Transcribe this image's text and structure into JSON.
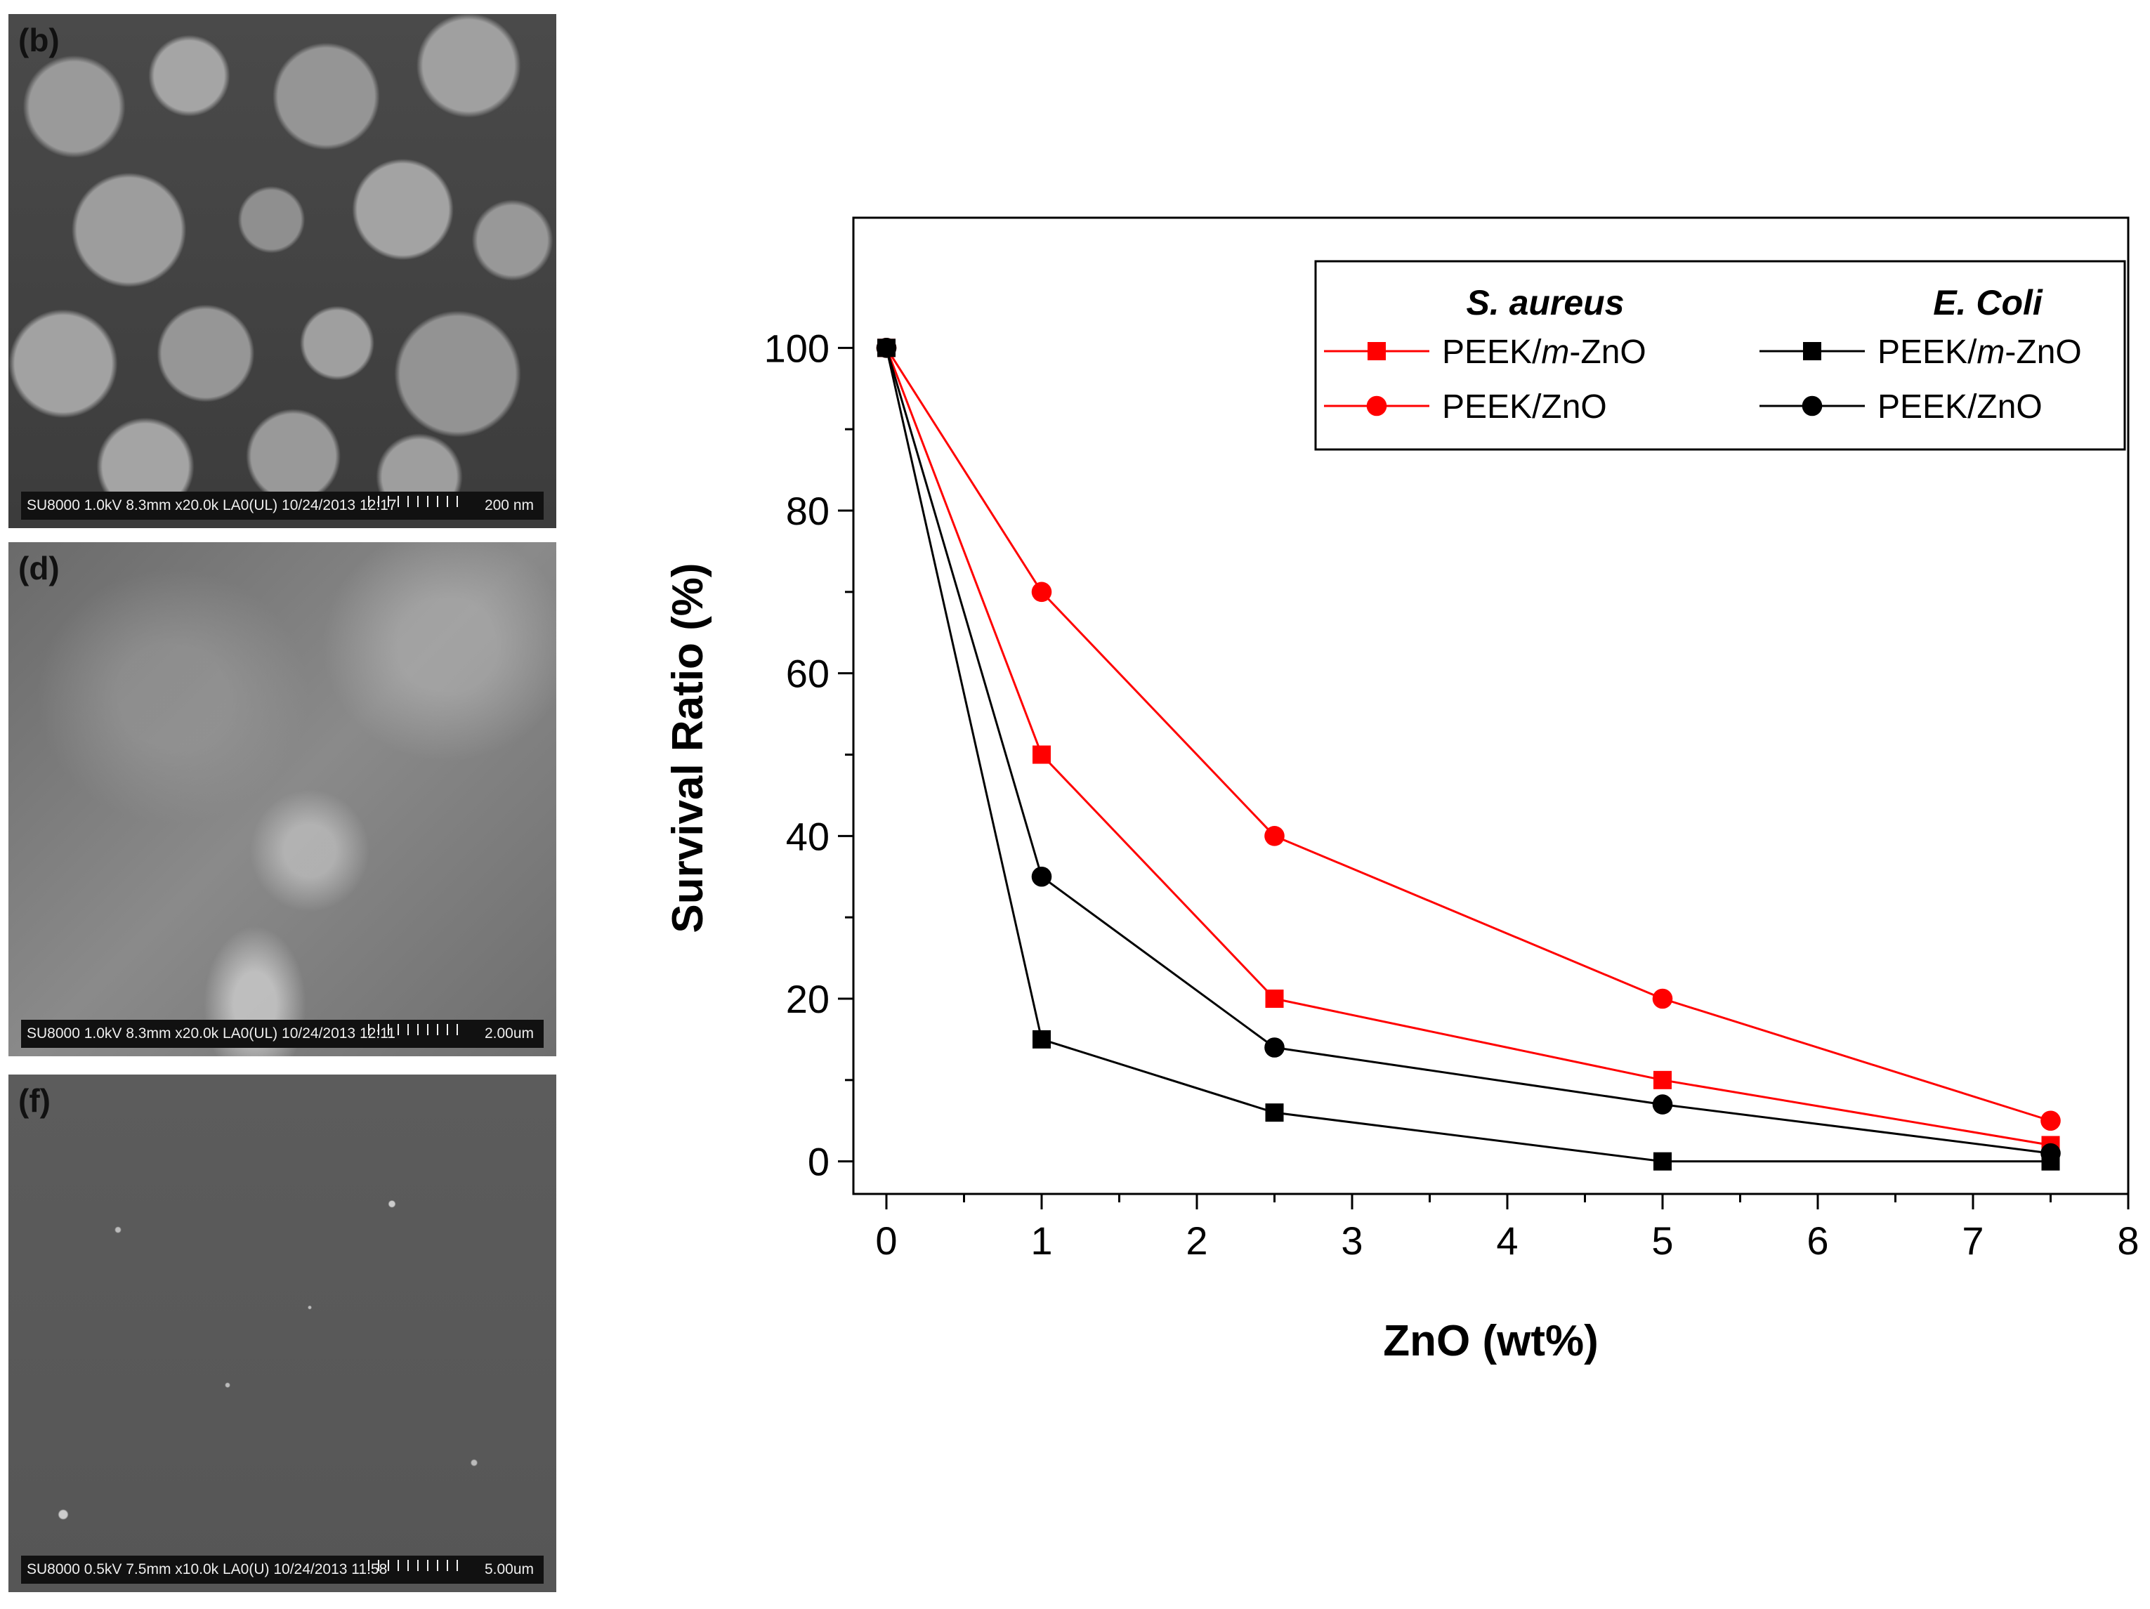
{
  "sem_panels": [
    {
      "label": "(b)",
      "info": "SU8000 1.0kV 8.3mm x20.0k LA0(UL) 10/24/2013 12:17",
      "scale": "200 nm"
    },
    {
      "label": "(d)",
      "info": "SU8000 1.0kV 8.3mm x20.0k LA0(UL) 10/24/2013 12:11",
      "scale": "2.00um"
    },
    {
      "label": "(f)",
      "info": "SU8000 0.5kV 7.5mm x10.0k LA0(U) 10/24/2013 11:58",
      "scale": "5.00um"
    }
  ],
  "colors": {
    "red": "#ff0000",
    "black": "#000000"
  },
  "chart_data": {
    "type": "line",
    "xlabel": "ZnO (wt%)",
    "ylabel": "Survival Ratio (%)",
    "xlim": [
      0,
      8
    ],
    "ylim": [
      0,
      100
    ],
    "x_ticks": [
      0,
      1,
      2,
      3,
      4,
      5,
      6,
      7,
      8
    ],
    "y_ticks": [
      0,
      20,
      40,
      60,
      80,
      100
    ],
    "x": [
      0,
      1,
      2.5,
      5,
      7.5
    ],
    "legend_placement": "top-right",
    "legend_groups": [
      "S. aureus",
      "E. Coli"
    ],
    "series": [
      {
        "group": "S. aureus",
        "name": "PEEK/m-ZnO",
        "name_prefix": "PEEK/",
        "name_italic": "m",
        "name_suffix": "-ZnO",
        "color": "#ff0000",
        "marker": "square",
        "values": [
          100,
          50,
          20,
          10,
          2
        ]
      },
      {
        "group": "S. aureus",
        "name": "PEEK/ZnO",
        "name_prefix": "PEEK/ZnO",
        "name_italic": "",
        "name_suffix": "",
        "color": "#ff0000",
        "marker": "circle",
        "values": [
          100,
          70,
          40,
          20,
          5
        ]
      },
      {
        "group": "E. Coli",
        "name": "PEEK/m-ZnO",
        "name_prefix": "PEEK/",
        "name_italic": "m",
        "name_suffix": "-ZnO",
        "color": "#000000",
        "marker": "square",
        "values": [
          100,
          15,
          6,
          0,
          0
        ]
      },
      {
        "group": "E. Coli",
        "name": "PEEK/ZnO",
        "name_prefix": "PEEK/ZnO",
        "name_italic": "",
        "name_suffix": "",
        "color": "#000000",
        "marker": "circle",
        "values": [
          100,
          35,
          14,
          7,
          1
        ]
      }
    ]
  }
}
